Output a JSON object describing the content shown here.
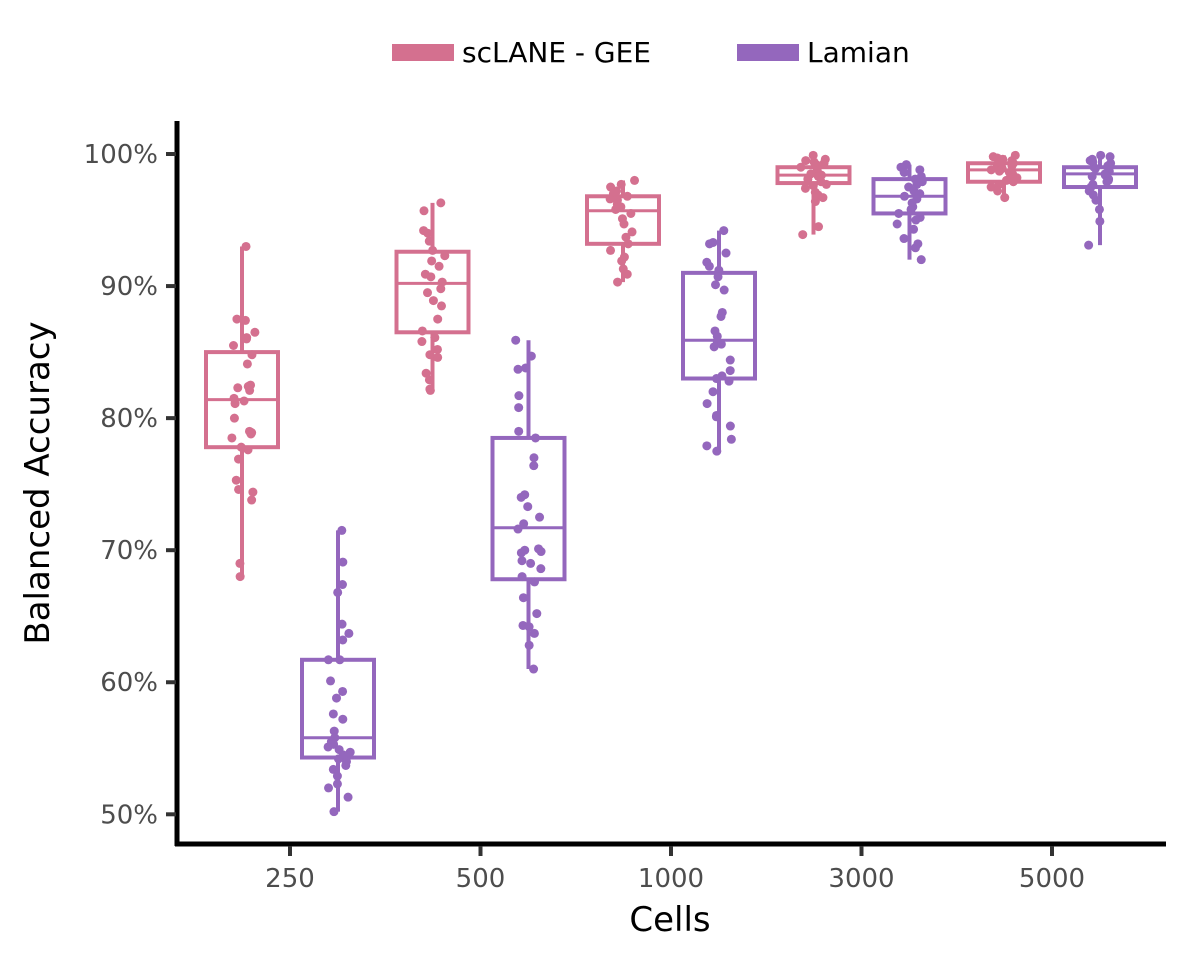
{
  "chart_data": {
    "type": "boxplot",
    "title": "",
    "xlabel": "Cells",
    "ylabel": "Balanced Accuracy",
    "categories": [
      "250",
      "500",
      "1000",
      "3000",
      "5000"
    ],
    "y_ticks": [
      0.5,
      0.6,
      0.7,
      0.8,
      0.9,
      1.0
    ],
    "y_tick_labels": [
      "50%",
      "60%",
      "70%",
      "80%",
      "90%",
      "100%"
    ],
    "ylim": [
      0.476,
      1.025
    ],
    "legend_position": "top",
    "grid": false,
    "series": [
      {
        "name": "scLANE - GEE",
        "color": "#d4708f",
        "boxes": [
          {
            "min": 0.68,
            "q1": 0.778,
            "median": 0.814,
            "q3": 0.85,
            "max": 0.93
          },
          {
            "min": 0.821,
            "q1": 0.865,
            "median": 0.902,
            "q3": 0.926,
            "max": 0.963
          },
          {
            "min": 0.903,
            "q1": 0.932,
            "median": 0.957,
            "q3": 0.968,
            "max": 0.98
          },
          {
            "min": 0.939,
            "q1": 0.978,
            "median": 0.984,
            "q3": 0.99,
            "max": 0.999
          },
          {
            "min": 0.967,
            "q1": 0.979,
            "median": 0.988,
            "q3": 0.993,
            "max": 0.999
          }
        ],
        "points": [
          [
            0.93,
            0.875,
            0.874,
            0.865,
            0.861,
            0.86,
            0.855,
            0.848,
            0.841,
            0.825,
            0.824,
            0.823,
            0.821,
            0.815,
            0.813,
            0.811,
            0.8,
            0.79,
            0.789,
            0.788,
            0.785,
            0.778,
            0.776,
            0.769,
            0.753,
            0.746,
            0.744,
            0.738,
            0.69,
            0.68
          ],
          [
            0.963,
            0.957,
            0.942,
            0.94,
            0.934,
            0.927,
            0.923,
            0.919,
            0.915,
            0.909,
            0.907,
            0.903,
            0.898,
            0.895,
            0.889,
            0.885,
            0.875,
            0.866,
            0.861,
            0.858,
            0.852,
            0.848,
            0.846,
            0.834,
            0.829,
            0.822,
            0.821
          ],
          [
            0.98,
            0.977,
            0.975,
            0.972,
            0.97,
            0.968,
            0.966,
            0.965,
            0.962,
            0.96,
            0.958,
            0.955,
            0.951,
            0.947,
            0.941,
            0.937,
            0.932,
            0.927,
            0.922,
            0.919,
            0.913,
            0.909,
            0.903
          ],
          [
            0.999,
            0.996,
            0.995,
            0.994,
            0.993,
            0.992,
            0.99,
            0.989,
            0.987,
            0.985,
            0.984,
            0.983,
            0.981,
            0.979,
            0.977,
            0.976,
            0.974,
            0.971,
            0.969,
            0.967,
            0.964,
            0.945,
            0.939
          ],
          [
            0.999,
            0.998,
            0.997,
            0.996,
            0.995,
            0.994,
            0.993,
            0.992,
            0.991,
            0.99,
            0.989,
            0.988,
            0.987,
            0.986,
            0.985,
            0.983,
            0.982,
            0.98,
            0.979,
            0.977,
            0.975,
            0.972,
            0.967
          ]
        ]
      },
      {
        "name": "Lamian",
        "color": "#9467bd",
        "boxes": [
          {
            "min": 0.502,
            "q1": 0.543,
            "median": 0.558,
            "q3": 0.617,
            "max": 0.715
          },
          {
            "min": 0.61,
            "q1": 0.678,
            "median": 0.717,
            "q3": 0.785,
            "max": 0.859
          },
          {
            "min": 0.775,
            "q1": 0.83,
            "median": 0.859,
            "q3": 0.91,
            "max": 0.942
          },
          {
            "min": 0.92,
            "q1": 0.955,
            "median": 0.968,
            "q3": 0.981,
            "max": 0.992
          },
          {
            "min": 0.931,
            "q1": 0.975,
            "median": 0.985,
            "q3": 0.99,
            "max": 0.999
          }
        ],
        "points": [
          [
            0.715,
            0.691,
            0.674,
            0.668,
            0.644,
            0.637,
            0.632,
            0.617,
            0.617,
            0.601,
            0.593,
            0.588,
            0.576,
            0.572,
            0.563,
            0.558,
            0.555,
            0.553,
            0.551,
            0.549,
            0.547,
            0.545,
            0.542,
            0.54,
            0.537,
            0.534,
            0.529,
            0.523,
            0.52,
            0.513,
            0.502
          ],
          [
            0.859,
            0.847,
            0.838,
            0.837,
            0.817,
            0.808,
            0.79,
            0.785,
            0.77,
            0.764,
            0.742,
            0.74,
            0.733,
            0.725,
            0.72,
            0.716,
            0.701,
            0.7,
            0.699,
            0.698,
            0.692,
            0.69,
            0.686,
            0.68,
            0.676,
            0.664,
            0.652,
            0.643,
            0.642,
            0.637,
            0.628,
            0.61
          ],
          [
            0.942,
            0.933,
            0.932,
            0.925,
            0.918,
            0.915,
            0.912,
            0.907,
            0.901,
            0.897,
            0.88,
            0.877,
            0.866,
            0.862,
            0.858,
            0.856,
            0.854,
            0.844,
            0.836,
            0.832,
            0.83,
            0.828,
            0.82,
            0.811,
            0.802,
            0.801,
            0.794,
            0.784,
            0.779,
            0.775
          ],
          [
            0.992,
            0.99,
            0.988,
            0.986,
            0.983,
            0.981,
            0.979,
            0.977,
            0.975,
            0.972,
            0.97,
            0.968,
            0.966,
            0.963,
            0.96,
            0.958,
            0.955,
            0.952,
            0.95,
            0.947,
            0.943,
            0.936,
            0.932,
            0.929,
            0.92
          ],
          [
            0.999,
            0.998,
            0.996,
            0.995,
            0.994,
            0.993,
            0.991,
            0.99,
            0.989,
            0.987,
            0.986,
            0.985,
            0.984,
            0.983,
            0.981,
            0.98,
            0.979,
            0.977,
            0.975,
            0.972,
            0.969,
            0.965,
            0.958,
            0.949,
            0.931
          ]
        ]
      }
    ]
  }
}
